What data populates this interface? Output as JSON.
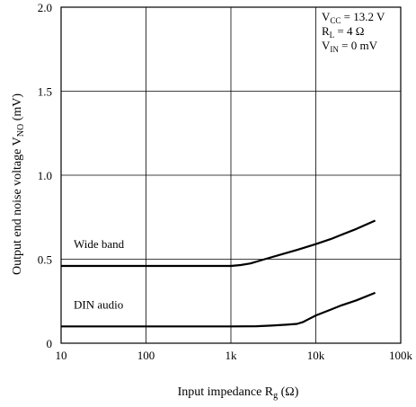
{
  "chart_data": {
    "type": "line",
    "xscale": "log",
    "xlim": [
      10,
      100000
    ],
    "ylim": [
      0,
      2.0
    ],
    "xlabel": {
      "prefix": "Input impedance   R",
      "sub": "g",
      "suffix": " (Ω)"
    },
    "ylabel": {
      "prefix": "Output end noise voltage   V",
      "sub": "NO",
      "suffix": " (mV)"
    },
    "x_ticks": [
      {
        "value": 10,
        "label": "10"
      },
      {
        "value": 100,
        "label": "100"
      },
      {
        "value": 1000,
        "label": "1k"
      },
      {
        "value": 10000,
        "label": "10k"
      },
      {
        "value": 100000,
        "label": "100k"
      }
    ],
    "y_ticks": [
      {
        "value": 0,
        "label": "0"
      },
      {
        "value": 0.5,
        "label": "0.5"
      },
      {
        "value": 1.0,
        "label": "1.0"
      },
      {
        "value": 1.5,
        "label": "1.5"
      },
      {
        "value": 2.0,
        "label": "2.0"
      }
    ],
    "conditions": [
      {
        "main": "V",
        "sub": "CC",
        "rest": " = 13.2 V"
      },
      {
        "main": "R",
        "sub": "L",
        "rest": " = 4 Ω"
      },
      {
        "main": "V",
        "sub": "IN",
        "rest": " = 0 mV"
      }
    ],
    "grid": true,
    "series": [
      {
        "name": "Wide band",
        "x": [
          10,
          20,
          50,
          100,
          200,
          500,
          1000,
          1300,
          1700,
          2500,
          4000,
          6000,
          10000,
          15000,
          20000,
          30000,
          50000
        ],
        "y": [
          0.46,
          0.46,
          0.46,
          0.46,
          0.46,
          0.46,
          0.46,
          0.465,
          0.475,
          0.5,
          0.53,
          0.555,
          0.59,
          0.62,
          0.645,
          0.68,
          0.73
        ]
      },
      {
        "name": "DIN audio",
        "x": [
          10,
          20,
          50,
          100,
          200,
          500,
          1000,
          2000,
          3000,
          4500,
          6000,
          7000,
          8000,
          10000,
          15000,
          20000,
          30000,
          50000
        ],
        "y": [
          0.1,
          0.1,
          0.1,
          0.1,
          0.1,
          0.1,
          0.1,
          0.101,
          0.105,
          0.11,
          0.115,
          0.125,
          0.14,
          0.165,
          0.2,
          0.225,
          0.255,
          0.3
        ]
      }
    ]
  }
}
